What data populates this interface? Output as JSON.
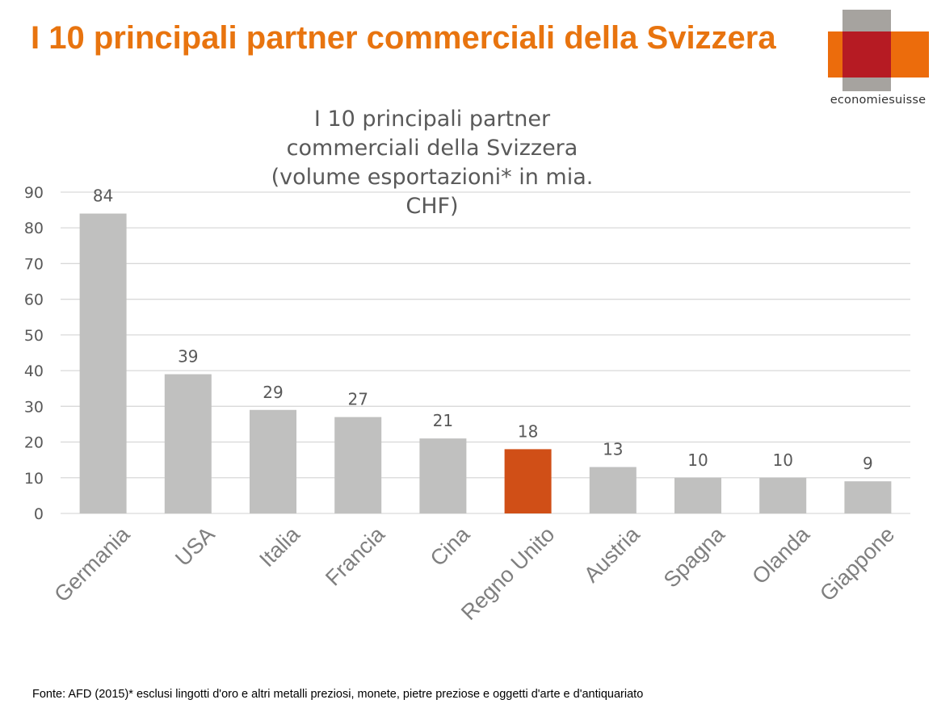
{
  "header": {
    "title": "I 10 principali partner commerciali della Svizzera"
  },
  "logo": {
    "name": "economiesuisse"
  },
  "footer": {
    "source": "Fonte: AFD (2015)* esclusi lingotti d'oro e altri metalli preziosi, monete, pietre preziose e oggetti d'arte e d'antiquariato"
  },
  "colors": {
    "title": "#e8740f",
    "bar": "#c0c0bf",
    "highlight_bar": "#d04f17",
    "gridline": "#d9d9d9",
    "text": "#595959",
    "logo_gray": "#a6a39f",
    "logo_red": "#b61b23",
    "logo_orange": "#ec6c0c"
  },
  "chart_data": {
    "type": "bar",
    "title": "I 10 principali partner commerciali della Svizzera (volume esportazioni* in mia. CHF)",
    "xlabel": "",
    "ylabel": "",
    "categories": [
      "Germania",
      "USA",
      "Italia",
      "Francia",
      "Cina",
      "Regno Unito",
      "Austria",
      "Spagna",
      "Olanda",
      "Giappone"
    ],
    "values": [
      84,
      39,
      29,
      27,
      21,
      18,
      13,
      10,
      10,
      9
    ],
    "value_labels": [
      "84",
      "39",
      "29",
      "27",
      "21",
      "18",
      "13",
      "10",
      "10",
      "9"
    ],
    "highlight_category": "Regno Unito",
    "ylim": [
      0,
      90
    ],
    "yticks": [
      0,
      10,
      20,
      30,
      40,
      50,
      60,
      70,
      80,
      90
    ],
    "ytick_labels": [
      "0",
      "10",
      "20",
      "30",
      "40",
      "50",
      "60",
      "70",
      "80",
      "90"
    ],
    "grid": true,
    "legend": "none"
  }
}
